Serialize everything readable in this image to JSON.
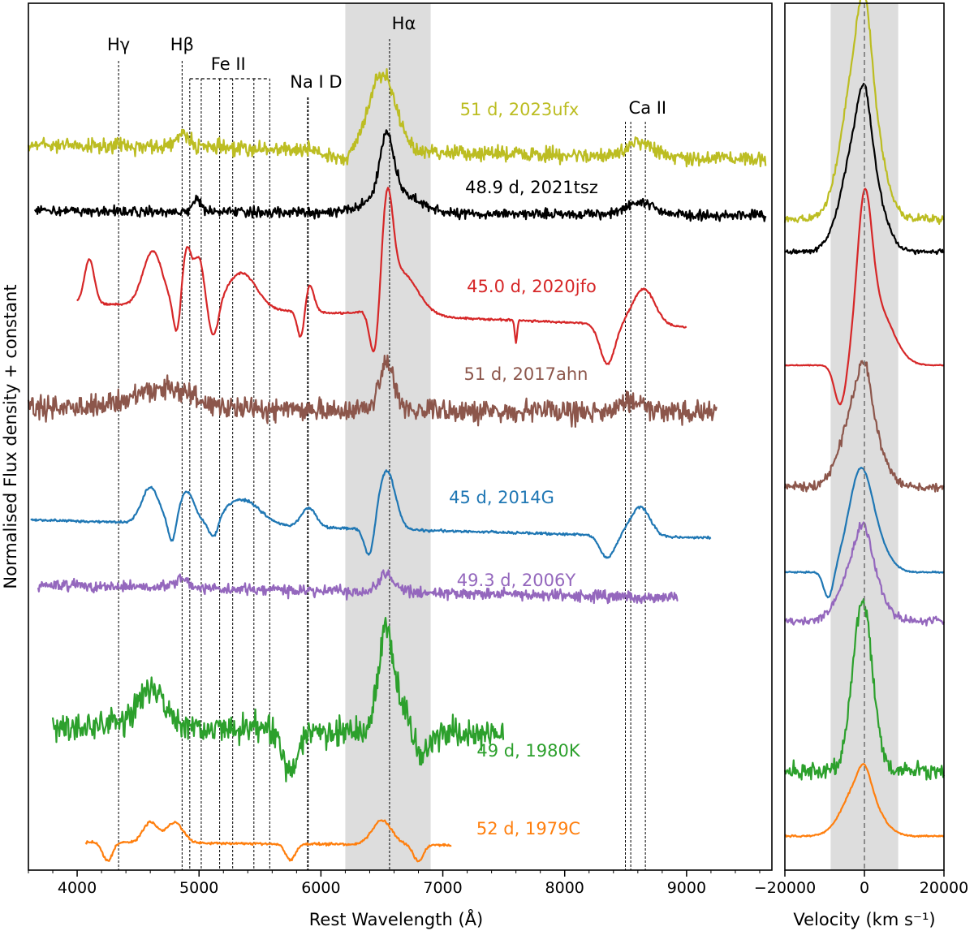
{
  "chart_data": [
    {
      "type": "line",
      "panel": "left",
      "xlabel": "Rest Wavelength (Å)",
      "ylabel": "Normalised Flux density + constant",
      "xlim": [
        3600,
        9700
      ],
      "xticks": [
        4000,
        5000,
        6000,
        7000,
        8000,
        9000
      ],
      "xtick_labels": [
        "4000",
        "5000",
        "6000",
        "7000",
        "8000",
        "9000"
      ],
      "shaded_region": [
        6200,
        6900
      ],
      "line_ids": [
        {
          "label": "Hγ",
          "wavelengths": [
            4340
          ]
        },
        {
          "label": "Hβ",
          "wavelengths": [
            4861
          ]
        },
        {
          "label": "Fe II",
          "wavelengths": [
            4924,
            5018,
            5169,
            5276,
            5450,
            5580
          ]
        },
        {
          "label": "Na I D",
          "wavelengths": [
            5890,
            5896
          ]
        },
        {
          "label": "Hα",
          "wavelengths": [
            6563
          ]
        },
        {
          "label": "Ca II",
          "wavelengths": [
            8498,
            8542,
            8662
          ]
        }
      ],
      "series": [
        {
          "name": "51 d, 2023ufx",
          "color": "#bcbd22",
          "range": [
            3600,
            9650
          ]
        },
        {
          "name": "48.9 d, 2021tsz",
          "color": "#000000",
          "range": [
            3650,
            9650
          ]
        },
        {
          "name": "45.0 d, 2020jfo",
          "color": "#d62728",
          "range": [
            4000,
            9000
          ]
        },
        {
          "name": "51 d, 2017ahn",
          "color": "#8c564b",
          "range": [
            3600,
            9250
          ]
        },
        {
          "name": "45 d, 2014G",
          "color": "#1f77b4",
          "range": [
            3620,
            9200
          ]
        },
        {
          "name": "49.3 d, 2006Y",
          "color": "#9467bd",
          "range": [
            3680,
            8930
          ]
        },
        {
          "name": "49 d, 1980K",
          "color": "#2ca02c",
          "range": [
            3800,
            7500
          ]
        },
        {
          "name": "52 d, 1979C",
          "color": "#ff7f0e",
          "range": [
            4070,
            7070
          ]
        }
      ]
    },
    {
      "type": "line",
      "panel": "right",
      "xlabel": "Velocity (km s⁻¹)",
      "xlim": [
        -20000,
        20000
      ],
      "xticks": [
        -20000,
        0,
        20000
      ],
      "xtick_labels": [
        "−20000",
        "0",
        "20000"
      ],
      "shaded_region": [
        -8500,
        8500
      ],
      "zero_line": 0,
      "series_order": [
        "2023ufx",
        "2021tsz",
        "2020jfo",
        "2017ahn",
        "2014G",
        "2006Y",
        "1980K",
        "1979C"
      ]
    }
  ]
}
